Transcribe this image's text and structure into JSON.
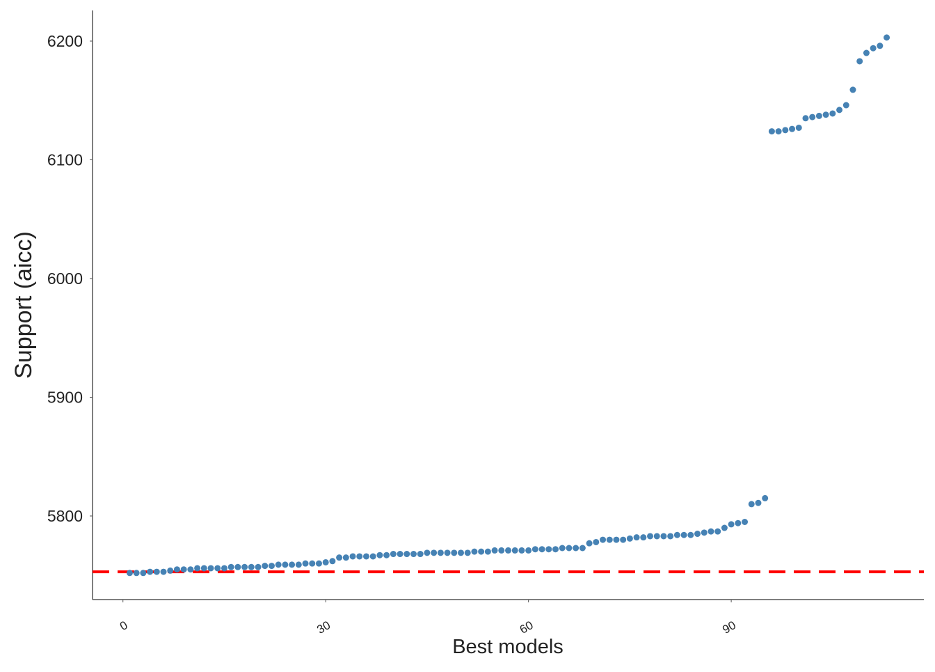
{
  "chart_data": {
    "type": "scatter",
    "x_label": "Best models",
    "y_label": "Support (aicc)",
    "x": [
      1,
      2,
      3,
      4,
      5,
      6,
      7,
      8,
      9,
      10,
      11,
      12,
      13,
      14,
      15,
      16,
      17,
      18,
      19,
      20,
      21,
      22,
      23,
      24,
      25,
      26,
      27,
      28,
      29,
      30,
      31,
      32,
      33,
      34,
      35,
      36,
      37,
      38,
      39,
      40,
      41,
      42,
      43,
      44,
      45,
      46,
      47,
      48,
      49,
      50,
      51,
      52,
      53,
      54,
      55,
      56,
      57,
      58,
      59,
      60,
      61,
      62,
      63,
      64,
      65,
      66,
      67,
      68,
      69,
      70,
      71,
      72,
      73,
      74,
      75,
      76,
      77,
      78,
      79,
      80,
      81,
      82,
      83,
      84,
      85,
      86,
      87,
      88,
      89,
      90,
      91,
      92,
      93,
      94,
      95,
      96,
      97,
      98,
      99,
      100,
      101,
      102,
      103,
      104,
      105,
      106,
      107,
      108,
      109,
      110,
      111,
      112,
      113
    ],
    "values": [
      5752,
      5752,
      5752,
      5753,
      5753,
      5753,
      5754,
      5755,
      5755,
      5755,
      5756,
      5756,
      5756,
      5756,
      5756,
      5757,
      5757,
      5757,
      5757,
      5757,
      5758,
      5758,
      5759,
      5759,
      5759,
      5759,
      5760,
      5760,
      5760,
      5761,
      5762,
      5765,
      5765,
      5766,
      5766,
      5766,
      5766,
      5767,
      5767,
      5768,
      5768,
      5768,
      5768,
      5768,
      5769,
      5769,
      5769,
      5769,
      5769,
      5769,
      5769,
      5770,
      5770,
      5770,
      5771,
      5771,
      5771,
      5771,
      5771,
      5771,
      5772,
      5772,
      5772,
      5772,
      5773,
      5773,
      5773,
      5773,
      5777,
      5778,
      5780,
      5780,
      5780,
      5780,
      5781,
      5782,
      5782,
      5783,
      5783,
      5783,
      5783,
      5784,
      5784,
      5784,
      5785,
      5786,
      5787,
      5787,
      5790,
      5793,
      5794,
      5795,
      5810,
      5811,
      5815,
      6124,
      6124,
      6125,
      6126,
      6127,
      6135,
      6136,
      6137,
      6138,
      6139,
      6142,
      6146,
      6159,
      6183,
      6190,
      6194,
      6196,
      6203
    ],
    "color": "#4682b4",
    "xlim": [
      -4.5,
      118.5
    ],
    "xticks": [
      0,
      30,
      60,
      90
    ],
    "ylim": [
      5729.6,
      6225.8
    ],
    "yticks": [
      5800,
      5900,
      6000,
      6100,
      6200
    ],
    "reference_line": {
      "value": 5753,
      "color": "#ff0000",
      "style": "dashed"
    },
    "grid": false
  }
}
